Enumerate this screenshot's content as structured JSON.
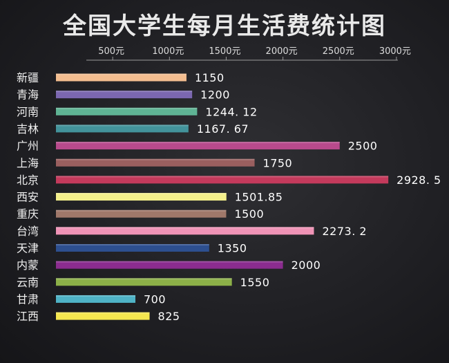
{
  "chart_data": {
    "type": "bar",
    "orientation": "horizontal",
    "title": "全国大学生每月生活费统计图",
    "x_axis_position": "top",
    "xlim": [
      0,
      3000
    ],
    "xticks": [
      500,
      1000,
      1500,
      2000,
      2500,
      3000
    ],
    "xtick_labels": [
      "500元",
      "1000元",
      "1500元",
      "2000元",
      "2500元",
      "3000元"
    ],
    "grid": false,
    "categories": [
      "新疆",
      "青海",
      "河南",
      "吉林",
      "广州",
      "上海",
      "北京",
      "西安",
      "重庆",
      "台湾",
      "天津",
      "内蒙",
      "云南",
      "甘肃",
      "江西"
    ],
    "values": [
      1150,
      1200,
      1244.12,
      1167.67,
      2500,
      1750,
      2928.5,
      1501.85,
      1500,
      2273.2,
      1350,
      2000,
      1550,
      700,
      825
    ],
    "value_labels": [
      "1150",
      "1200",
      "1244. 12",
      "1167. 67",
      "2500",
      "1750",
      "2928. 5",
      "1501.85",
      "1500",
      "2273. 2",
      "1350",
      "2000",
      "1550",
      "700",
      "825"
    ],
    "colors": [
      "#f3bd8f",
      "#7b67b0",
      "#5fb394",
      "#43939b",
      "#b84a8c",
      "#9a5f5f",
      "#c43a5c",
      "#f4f08b",
      "#a0786a",
      "#ef93b6",
      "#2d4f8f",
      "#8b2c8f",
      "#8cb048",
      "#4fb3c6",
      "#f5e74f"
    ]
  }
}
